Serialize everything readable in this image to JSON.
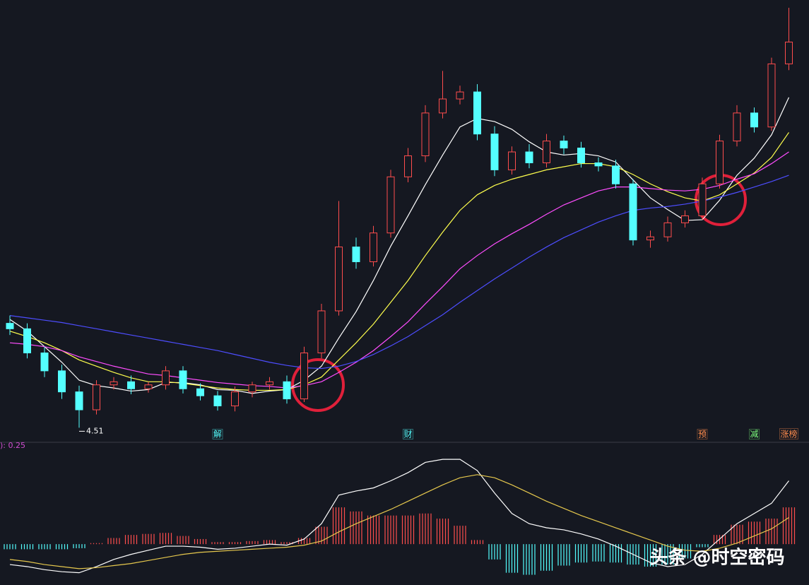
{
  "chart_data": [
    {
      "type": "candlestick",
      "categories": [
        null,
        null,
        null,
        null,
        null,
        null,
        null,
        null,
        null,
        null,
        null,
        null,
        null,
        null,
        null,
        null,
        null,
        null,
        null,
        null,
        null,
        null,
        null,
        null,
        null,
        null,
        null,
        null,
        null,
        null,
        null,
        null,
        null,
        null,
        null,
        null,
        null,
        null,
        null,
        null,
        null,
        null,
        null,
        null,
        null,
        null
      ],
      "open": [
        5.85,
        5.78,
        5.47,
        5.24,
        4.97,
        4.74,
        5.06,
        5.1,
        5.01,
        5.06,
        5.24,
        5.01,
        4.92,
        4.79,
        4.97,
        5.06,
        5.1,
        4.88,
        5.47,
        6.01,
        6.83,
        6.64,
        7.01,
        7.73,
        8.0,
        8.55,
        8.73,
        8.82,
        8.28,
        7.82,
        8.05,
        7.91,
        8.19,
        8.1,
        7.91,
        7.87,
        7.64,
        6.92,
        6.96,
        7.14,
        7.23,
        7.64,
        8.19,
        8.55,
        8.37,
        9.18
      ],
      "high": [
        5.95,
        5.85,
        5.55,
        5.32,
        5.05,
        5.12,
        5.16,
        5.18,
        5.1,
        5.3,
        5.3,
        5.08,
        4.98,
        5.04,
        5.1,
        5.16,
        5.18,
        5.55,
        6.1,
        7.42,
        6.95,
        7.1,
        7.82,
        8.1,
        8.65,
        9.09,
        8.9,
        8.92,
        8.38,
        8.12,
        8.15,
        8.28,
        8.26,
        8.18,
        7.98,
        7.95,
        7.7,
        7.04,
        7.22,
        7.3,
        7.72,
        8.27,
        8.65,
        8.62,
        9.26,
        9.9
      ],
      "low": [
        5.7,
        5.4,
        5.16,
        4.88,
        4.51,
        4.68,
        5.0,
        4.94,
        4.96,
        5.0,
        4.95,
        4.86,
        4.73,
        4.72,
        4.9,
        5.0,
        4.82,
        4.84,
        5.4,
        5.95,
        6.55,
        6.58,
        6.95,
        7.66,
        7.92,
        8.48,
        8.66,
        8.2,
        7.74,
        7.76,
        7.84,
        7.85,
        8.02,
        7.85,
        7.8,
        7.58,
        6.85,
        6.82,
        6.9,
        7.08,
        7.18,
        7.58,
        8.12,
        8.3,
        8.32,
        9.1
      ],
      "close": [
        5.78,
        5.47,
        5.24,
        4.97,
        4.74,
        5.06,
        5.1,
        5.01,
        5.06,
        5.24,
        5.01,
        4.92,
        4.79,
        4.97,
        5.06,
        5.1,
        4.88,
        5.47,
        6.01,
        6.83,
        6.64,
        7.01,
        7.73,
        8.0,
        8.55,
        8.73,
        8.82,
        8.28,
        7.82,
        8.05,
        7.91,
        8.19,
        8.1,
        7.91,
        7.87,
        7.64,
        6.92,
        6.96,
        7.14,
        7.23,
        7.64,
        8.19,
        8.55,
        8.37,
        9.18,
        9.46
      ],
      "up_color": "#ff4d4d",
      "down_color": "#54ffff",
      "lines": [
        {
          "color": "#ffffff",
          "values": [
            5.9,
            5.75,
            5.55,
            5.35,
            5.12,
            5.05,
            5.02,
            4.98,
            5.0,
            5.09,
            5.09,
            5.06,
            5.0,
            4.99,
            4.95,
            4.98,
            5.0,
            5.12,
            5.3,
            5.66,
            6.0,
            6.4,
            6.84,
            7.23,
            7.63,
            8.01,
            8.37,
            8.48,
            8.44,
            8.34,
            8.18,
            8.05,
            8.01,
            8.03,
            8.0,
            7.92,
            7.69,
            7.46,
            7.31,
            7.17,
            7.18,
            7.43,
            7.75,
            7.97,
            8.27,
            8.75
          ]
        },
        {
          "color": "#ffff4d",
          "values": [
            5.75,
            5.68,
            5.6,
            5.5,
            5.38,
            5.3,
            5.22,
            5.15,
            5.1,
            5.1,
            5.08,
            5.05,
            5.02,
            5.0,
            4.99,
            4.99,
            5.0,
            5.06,
            5.16,
            5.38,
            5.6,
            5.84,
            6.12,
            6.4,
            6.72,
            7.02,
            7.3,
            7.5,
            7.62,
            7.7,
            7.76,
            7.82,
            7.86,
            7.9,
            7.9,
            7.86,
            7.76,
            7.64,
            7.54,
            7.46,
            7.42,
            7.5,
            7.64,
            7.78,
            7.98,
            8.3
          ]
        },
        {
          "color": "#ff4dff",
          "values": [
            5.6,
            5.58,
            5.55,
            5.5,
            5.42,
            5.36,
            5.3,
            5.25,
            5.2,
            5.18,
            5.15,
            5.12,
            5.09,
            5.07,
            5.05,
            5.04,
            5.02,
            5.05,
            5.1,
            5.22,
            5.35,
            5.5,
            5.68,
            5.87,
            6.1,
            6.32,
            6.55,
            6.72,
            6.87,
            7.0,
            7.12,
            7.25,
            7.37,
            7.46,
            7.55,
            7.6,
            7.6,
            7.58,
            7.56,
            7.55,
            7.57,
            7.62,
            7.7,
            7.77,
            7.9,
            8.05
          ]
        },
        {
          "color": "#4d4dff",
          "values": [
            5.95,
            5.92,
            5.89,
            5.86,
            5.82,
            5.78,
            5.74,
            5.7,
            5.66,
            5.62,
            5.58,
            5.54,
            5.5,
            5.45,
            5.4,
            5.35,
            5.31,
            5.28,
            5.27,
            5.3,
            5.36,
            5.45,
            5.56,
            5.68,
            5.82,
            5.96,
            6.12,
            6.27,
            6.42,
            6.56,
            6.7,
            6.83,
            6.95,
            7.05,
            7.15,
            7.23,
            7.3,
            7.33,
            7.35,
            7.38,
            7.42,
            7.47,
            7.53,
            7.6,
            7.67,
            7.75
          ]
        }
      ],
      "ylim": [
        4.45,
        10.0
      ],
      "low_label": 4.51,
      "events": [
        {
          "index": 12,
          "label": "解",
          "color": "#54ffff"
        },
        {
          "index": 23,
          "label": "财",
          "color": "#54ffff"
        },
        {
          "index": 40,
          "label": "预",
          "color": "#ff8c4d"
        },
        {
          "index": 43,
          "label": "减",
          "color": "#7dff7d"
        },
        {
          "index": 45,
          "label": "涨榜",
          "color": "#ff8c4d"
        }
      ]
    },
    {
      "type": "macd",
      "title": "): 0.25",
      "ylim": [
        -0.4,
        0.9
      ],
      "series": [
        {
          "color": "#ffffff",
          "values": [
            -0.2,
            -0.22,
            -0.25,
            -0.27,
            -0.28,
            -0.22,
            -0.15,
            -0.1,
            -0.06,
            -0.02,
            -0.02,
            -0.03,
            -0.05,
            -0.04,
            -0.02,
            0.0,
            -0.01,
            0.05,
            0.2,
            0.48,
            0.52,
            0.55,
            0.62,
            0.7,
            0.8,
            0.83,
            0.83,
            0.72,
            0.5,
            0.3,
            0.2,
            0.16,
            0.14,
            0.1,
            0.05,
            -0.02,
            -0.1,
            -0.18,
            -0.22,
            -0.2,
            -0.1,
            0.05,
            0.2,
            0.3,
            0.4,
            0.62
          ]
        },
        {
          "color": "#e6c84d",
          "values": [
            -0.15,
            -0.17,
            -0.2,
            -0.22,
            -0.24,
            -0.23,
            -0.21,
            -0.19,
            -0.16,
            -0.13,
            -0.1,
            -0.08,
            -0.07,
            -0.06,
            -0.05,
            -0.04,
            -0.03,
            -0.01,
            0.03,
            0.12,
            0.2,
            0.27,
            0.34,
            0.42,
            0.5,
            0.58,
            0.65,
            0.68,
            0.65,
            0.58,
            0.5,
            0.42,
            0.35,
            0.28,
            0.22,
            0.16,
            0.1,
            0.04,
            -0.02,
            -0.06,
            -0.07,
            -0.04,
            0.01,
            0.08,
            0.15,
            0.26
          ]
        }
      ],
      "histogram": [
        -0.05,
        -0.05,
        -0.05,
        -0.05,
        -0.04,
        0.01,
        0.06,
        0.09,
        0.1,
        0.11,
        0.08,
        0.05,
        0.02,
        0.02,
        0.03,
        0.04,
        0.02,
        0.06,
        0.17,
        0.36,
        0.32,
        0.28,
        0.28,
        0.28,
        0.3,
        0.25,
        0.18,
        0.04,
        -0.15,
        -0.28,
        -0.3,
        -0.26,
        -0.21,
        -0.18,
        -0.17,
        -0.18,
        -0.2,
        -0.22,
        -0.2,
        -0.14,
        -0.03,
        0.09,
        0.19,
        0.22,
        0.25,
        0.36
      ],
      "up_color": "#ff4d4d",
      "down_color": "#54ffff"
    }
  ],
  "watermark": "头条 @时空密码"
}
